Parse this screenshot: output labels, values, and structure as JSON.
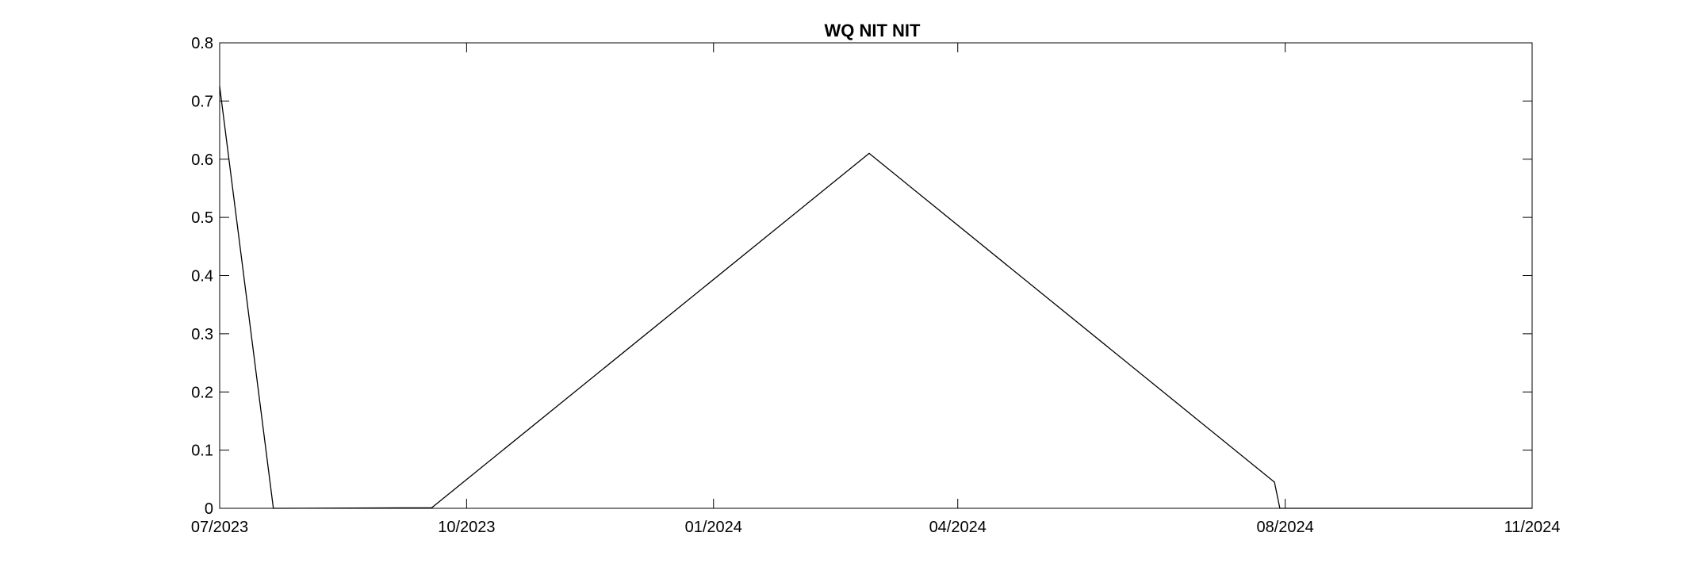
{
  "chart_data": {
    "type": "line",
    "title": "WQ NIT NIT",
    "xlabel": "",
    "ylabel": "",
    "grid": false,
    "legend": "none",
    "line_color": "#000000",
    "xlim": [
      "2023-07-01",
      "2024-11-01"
    ],
    "ylim": [
      0,
      0.8
    ],
    "x_ticks": [
      {
        "date": "2023-07-01",
        "label": "07/2023"
      },
      {
        "date": "2023-10-01",
        "label": "10/2023"
      },
      {
        "date": "2024-01-01",
        "label": "01/2024"
      },
      {
        "date": "2024-04-01",
        "label": "04/2024"
      },
      {
        "date": "2024-08-01",
        "label": "08/2024"
      },
      {
        "date": "2024-11-01",
        "label": "11/2024"
      }
    ],
    "y_ticks": [
      {
        "value": 0,
        "label": "0"
      },
      {
        "value": 0.1,
        "label": "0.1"
      },
      {
        "value": 0.2,
        "label": "0.2"
      },
      {
        "value": 0.3,
        "label": "0.3"
      },
      {
        "value": 0.4,
        "label": "0.4"
      },
      {
        "value": 0.5,
        "label": "0.5"
      },
      {
        "value": 0.6,
        "label": "0.6"
      },
      {
        "value": 0.7,
        "label": "0.7"
      },
      {
        "value": 0.8,
        "label": "0.8"
      }
    ],
    "series": [
      {
        "points": [
          {
            "x": "2023-07-01",
            "y": 0.725
          },
          {
            "x": "2023-07-21",
            "y": 0.0
          },
          {
            "x": "2023-09-18",
            "y": 0.001
          },
          {
            "x": "2024-02-28",
            "y": 0.61
          },
          {
            "x": "2024-07-28",
            "y": 0.045
          },
          {
            "x": "2024-07-30",
            "y": 0.0
          },
          {
            "x": "2024-11-01",
            "y": 0.0
          }
        ]
      }
    ]
  }
}
